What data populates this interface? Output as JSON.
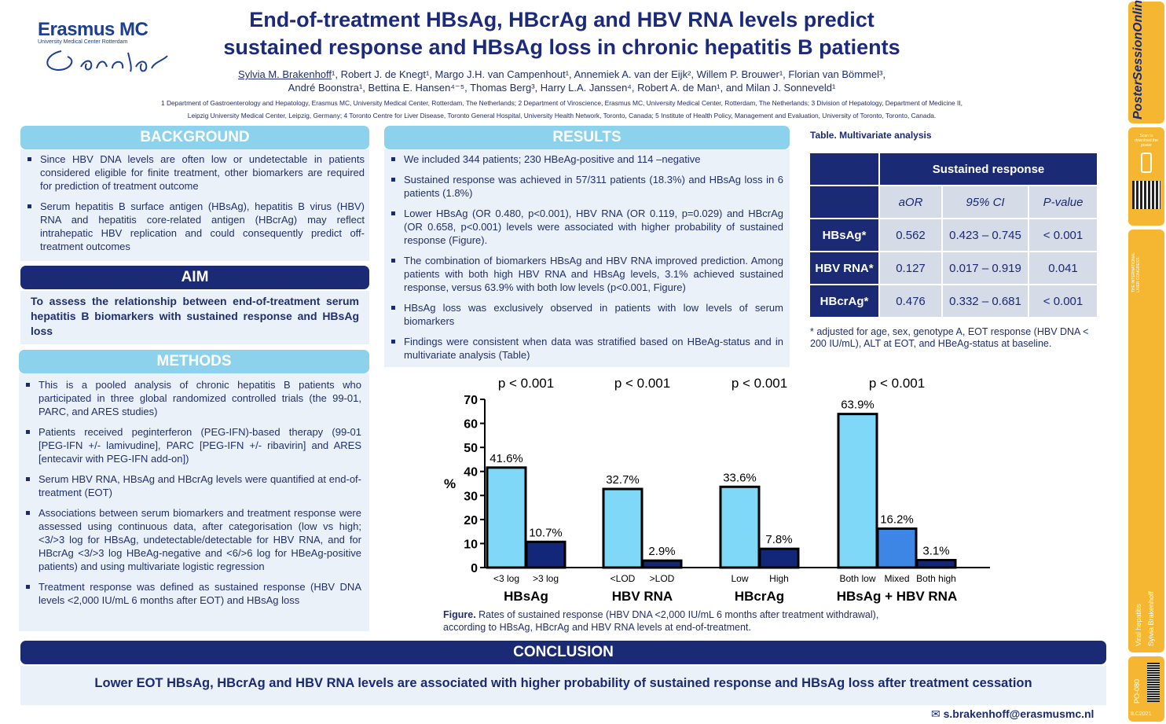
{
  "logo": {
    "name": "Erasmus MC",
    "subtitle": "University Medical Center Rotterdam"
  },
  "title": {
    "line1": "End-of-treatment HBsAg, HBcrAg and HBV RNA levels predict",
    "line2": "sustained response and HBsAg loss in chronic hepatitis B patients"
  },
  "authors": {
    "first_author": "Sylvia M. Brakenhoff",
    "line1_rest": "¹, Robert J. de Knegt¹, Margo J.H. van Campenhout¹, Annemiek A. van der Eijk², Willem P. Brouwer¹, Florian van Bömmel³,",
    "line2": "André Boonstra¹, Bettina E. Hansen⁴⁻⁵, Thomas Berg³, Harry L.A. Janssen⁴, Robert A. de Man¹, and Milan J. Sonneveld¹"
  },
  "affiliations": {
    "line1": "1 Department of Gastroenterology and Hepatology, Erasmus MC, University Medical Center, Rotterdam, The Netherlands; 2 Department of Viroscience, Erasmus MC, University Medical Center, Rotterdam, The Netherlands; 3 Division of Hepatology, Department of Medicine II,",
    "line2": "Leipzig University Medical Center, Leipzig, Germany; 4 Toronto Centre for Liver Disease, Toronto General Hospital, University Health Network, Toronto, Canada; 5 Institute of Health Policy, Management and Evaluation, University of Toronto, Toronto, Canada."
  },
  "background": {
    "heading": "BACKGROUND",
    "items": [
      "Since HBV DNA levels are often low or undetectable in patients considered eligible for finite treatment, other biomarkers are required for prediction of treatment outcome",
      "Serum hepatitis B surface antigen (HBsAg), hepatitis B virus (HBV) RNA and hepatitis core-related antigen (HBcrAg) may reflect intrahepatic HBV replication and could consequently predict off-treatment outcomes"
    ]
  },
  "aim": {
    "heading": "AIM",
    "text": "To assess the relationship between end-of-treatment serum hepatitis B biomarkers with sustained response and HBsAg loss"
  },
  "methods": {
    "heading": "METHODS",
    "items": [
      "This is a pooled analysis of chronic hepatitis B patients who participated in three global randomized controlled trials (the 99-01, PARC, and ARES studies)",
      "Patients received peginterferon (PEG-IFN)-based therapy (99-01 [PEG-IFN +/- lamivudine], PARC [PEG-IFN +/- ribavirin] and ARES [entecavir with PEG-IFN add-on])",
      "Serum HBV RNA, HBsAg and HBcrAg levels were quantified at end-of-treatment (EOT)",
      "Associations between serum biomarkers and treatment response were assessed using continuous data, after categorisation (low vs high; <3/>3 log for HBsAg, undetectable/detectable for HBV RNA, and for HBcrAg <3/>3 log HBeAg-negative and <6/>6 log for HBeAg-positive patients) and using multivariate logistic regression",
      "Treatment response was defined as sustained response (HBV DNA levels <2,000 IU/mL 6 months after EOT) and HBsAg loss"
    ]
  },
  "results": {
    "heading": "RESULTS",
    "items": [
      "We included 344 patients; 230 HBeAg-positive and 114 –negative",
      "Sustained response was achieved in 57/311 patients (18.3%) and HBsAg loss in 6 patients (1.8%)",
      "Lower HBsAg (OR 0.480, p<0.001), HBV RNA (OR 0.119, p=0.029) and HBcrAg (OR 0.658, p<0.001) levels were associated with higher probability of sustained response (Figure).",
      "The combination of biomarkers HBsAg and HBV RNA improved prediction. Among patients with both high HBV RNA and HBsAg levels, 3.1% achieved sustained response, versus 63.9% with both low levels (p<0.001, Figure)",
      "HBsAg loss was exclusively observed in patients with low levels of serum biomarkers",
      "Findings were consistent when data was stratified based on HBeAg-status and in multivariate analysis (Table)"
    ]
  },
  "table": {
    "caption": "Table. Multivariate analysis",
    "header": "Sustained response",
    "columns": [
      "aOR",
      "95% CI",
      "P-value"
    ],
    "rows": [
      {
        "label": "HBsAg*",
        "aor": "0.562",
        "ci": "0.423 – 0.745",
        "p": "< 0.001"
      },
      {
        "label": "HBV RNA*",
        "aor": "0.127",
        "ci": "0.017 – 0.919",
        "p": "0.041"
      },
      {
        "label": "HBcrAg*",
        "aor": "0.476",
        "ci": "0.332 – 0.681",
        "p": "< 0.001"
      }
    ],
    "footnote": "* adjusted for age, sex, genotype A, EOT response (HBV DNA < 200 IU/mL), ALT at EOT, and HBeAg-status at baseline."
  },
  "chart_data": {
    "type": "bar",
    "ylabel": "%",
    "ylim": [
      0,
      70
    ],
    "yticks": [
      0,
      10,
      20,
      30,
      40,
      50,
      60,
      70
    ],
    "groups": [
      {
        "name": "HBsAg",
        "pvalue": "p < 0.001",
        "bars": [
          {
            "label": "<3 log",
            "value": 41.6,
            "display": "41.6%",
            "color": "#7fd8f8"
          },
          {
            "label": ">3 log",
            "value": 10.7,
            "display": "10.7%",
            "color": "#13277a"
          }
        ]
      },
      {
        "name": "HBV RNA",
        "pvalue": "p < 0.001",
        "bars": [
          {
            "label": "<LOD",
            "value": 32.7,
            "display": "32.7%",
            "color": "#7fd8f8"
          },
          {
            "label": ">LOD",
            "value": 2.9,
            "display": "2.9%",
            "color": "#13277a"
          }
        ]
      },
      {
        "name": "HBcrAg",
        "pvalue": "p < 0.001",
        "bars": [
          {
            "label": "Low",
            "value": 33.6,
            "display": "33.6%",
            "color": "#7fd8f8"
          },
          {
            "label": "High",
            "value": 7.8,
            "display": "7.8%",
            "color": "#13277a"
          }
        ]
      },
      {
        "name": "HBsAg + HBV RNA",
        "pvalue": "p < 0.001",
        "bars": [
          {
            "label": "Both low",
            "value": 63.9,
            "display": "63.9%",
            "color": "#7fd8f8"
          },
          {
            "label": "Mixed",
            "value": 16.2,
            "display": "16.2%",
            "color": "#3e86e6"
          },
          {
            "label": "Both high",
            "value": 3.1,
            "display": "3.1%",
            "color": "#13277a"
          }
        ]
      }
    ]
  },
  "figure_caption": {
    "bold": "Figure.",
    "line1": " Rates of sustained response (HBV DNA <2,000 IU/mL 6 months after treatment withdrawal),",
    "line2": "according to HBsAg, HBcrAg and HBV RNA levels at end-of-treatment."
  },
  "conclusion": {
    "heading": "CONCLUSION",
    "text": "Lower EOT HBsAg, HBcrAg and HBV RNA levels are associated with higher probability of sustained response and HBsAg loss after treatment cessation"
  },
  "contact": {
    "email": "s.brakenhoff@erasmusmc.nl",
    "icon": "envelope-icon"
  },
  "sidebar": {
    "brand": "PosterSessionOnline",
    "scan_text": "Scan to download the poster",
    "congress": "THE INTERNATIONAL LIVER CONGRESS",
    "topic": "Viral hepatitis",
    "author": "Sylvia Brakenhoff",
    "poster_id": "PO-080",
    "event": "ILC2021",
    "accent": "#f5b731"
  }
}
